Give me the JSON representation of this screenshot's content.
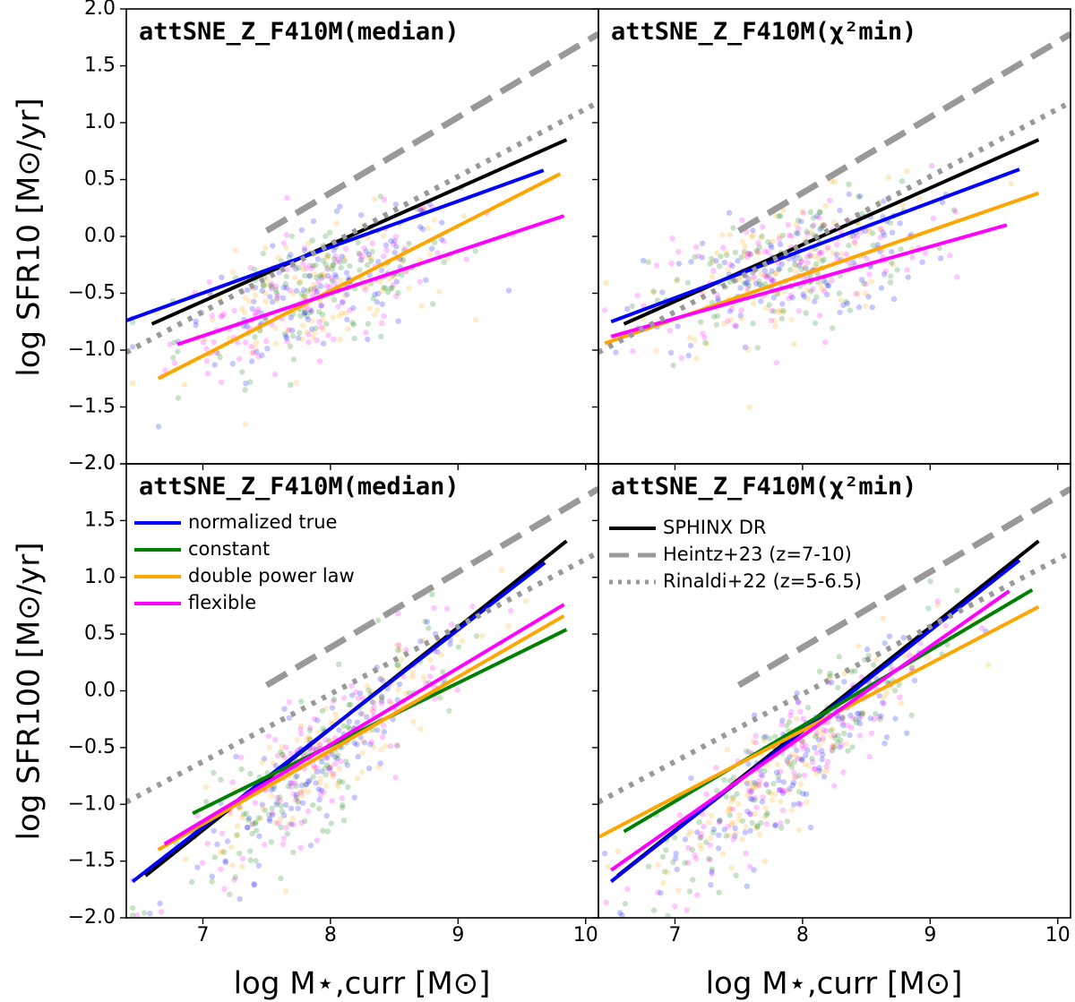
{
  "figure": {
    "ylabel_top": "log SFR10 [M⊙/yr]",
    "ylabel_bottom": "log SFR100 [M⊙/yr]",
    "xlabel": "log M⋆,curr [M⊙]"
  },
  "legends": {
    "lower_left": [
      {
        "label": "normalized true",
        "color": "#0000ff",
        "style": "solid"
      },
      {
        "label": "constant",
        "color": "#008000",
        "style": "solid"
      },
      {
        "label": "double power law",
        "color": "#ffa500",
        "style": "solid"
      },
      {
        "label": "flexible",
        "color": "#ff00ff",
        "style": "solid"
      }
    ],
    "lower_right": [
      {
        "label": "SPHINX DR",
        "color": "#000000",
        "style": "solid"
      },
      {
        "label": "Heintz+23 (z=7-10)",
        "color": "#999999",
        "style": "dashed"
      },
      {
        "label": "Rinaldi+22 (z=5-6.5)",
        "color": "#999999",
        "style": "dotted"
      }
    ]
  },
  "chart_data": [
    {
      "type": "scatter",
      "panel": "top-left",
      "title": "attSNE_Z_F410M(median)",
      "xlim": [
        6.4,
        10.1
      ],
      "ylim": [
        -2.0,
        2.0
      ],
      "xticks": [
        7,
        8,
        9,
        10
      ],
      "yticks": [
        -2.0,
        -1.5,
        -1.0,
        -0.5,
        0.0,
        0.5,
        1.0,
        1.5,
        2.0
      ],
      "xlabel": "",
      "ylabel": "log SFR10 [M⊙/yr]",
      "scatter_center": [
        -0.45,
        0.38,
        0.0
      ],
      "series": [
        {
          "name": "SPHINX DR",
          "color": "#000000",
          "style": "solid",
          "x": [
            6.6,
            9.85
          ],
          "y": [
            -0.77,
            0.85
          ]
        },
        {
          "name": "normalized true",
          "color": "#0000ff",
          "style": "solid",
          "x": [
            6.4,
            9.67
          ],
          "y": [
            -0.74,
            0.58
          ]
        },
        {
          "name": "double power law",
          "color": "#ffa500",
          "style": "solid",
          "x": [
            6.65,
            9.8
          ],
          "y": [
            -1.25,
            0.55
          ]
        },
        {
          "name": "flexible",
          "color": "#ff00ff",
          "style": "solid",
          "x": [
            6.8,
            9.83
          ],
          "y": [
            -0.95,
            0.18
          ]
        },
        {
          "name": "Heintz+23 (z=7-10)",
          "color": "#999999",
          "style": "dashed",
          "x": [
            7.5,
            10.1
          ],
          "y": [
            0.05,
            1.78
          ]
        },
        {
          "name": "Rinaldi+22 (z=5-6.5)",
          "color": "#999999",
          "style": "dotted",
          "x": [
            6.4,
            10.1
          ],
          "y": [
            -1.02,
            1.18
          ]
        }
      ]
    },
    {
      "type": "scatter",
      "panel": "top-right",
      "title": "attSNE_Z_F410M(χ²min)",
      "xlim": [
        6.4,
        10.1
      ],
      "ylim": [
        -2.0,
        2.0
      ],
      "xticks": [
        7,
        8,
        9,
        10
      ],
      "yticks": [
        -2.0,
        -1.5,
        -1.0,
        -0.5,
        0.0,
        0.5,
        1.0,
        1.5,
        2.0
      ],
      "xlabel": "",
      "ylabel": "",
      "scatter_center": [
        -0.25,
        0.3,
        0.0
      ],
      "series": [
        {
          "name": "SPHINX DR",
          "color": "#000000",
          "style": "solid",
          "x": [
            6.6,
            9.85
          ],
          "y": [
            -0.77,
            0.85
          ]
        },
        {
          "name": "normalized true",
          "color": "#0000ff",
          "style": "solid",
          "x": [
            6.5,
            9.7
          ],
          "y": [
            -0.75,
            0.59
          ]
        },
        {
          "name": "double power law",
          "color": "#ffa500",
          "style": "solid",
          "x": [
            6.45,
            9.85
          ],
          "y": [
            -0.94,
            0.38
          ]
        },
        {
          "name": "flexible",
          "color": "#ff00ff",
          "style": "solid",
          "x": [
            6.5,
            9.6
          ],
          "y": [
            -0.88,
            0.1
          ]
        },
        {
          "name": "Heintz+23 (z=7-10)",
          "color": "#999999",
          "style": "dashed",
          "x": [
            7.5,
            10.1
          ],
          "y": [
            0.05,
            1.78
          ]
        },
        {
          "name": "Rinaldi+22 (z=5-6.5)",
          "color": "#999999",
          "style": "dotted",
          "x": [
            6.4,
            10.1
          ],
          "y": [
            -1.02,
            1.18
          ]
        }
      ]
    },
    {
      "type": "scatter",
      "panel": "bottom-left",
      "title": "attSNE_Z_F410M(median)",
      "xlim": [
        6.4,
        10.1
      ],
      "ylim": [
        -2.0,
        2.0
      ],
      "xticks": [
        7,
        8,
        9,
        10
      ],
      "yticks": [
        -2.0,
        -1.5,
        -1.0,
        -0.5,
        0.0,
        0.5,
        1.0,
        1.5,
        2.0
      ],
      "xlabel": "log M⋆,curr [M⊙]",
      "ylabel": "log SFR100 [M⊙/yr]",
      "scatter_center": [
        -0.55,
        0.95,
        0.0
      ],
      "series": [
        {
          "name": "SPHINX DR",
          "color": "#000000",
          "style": "solid",
          "x": [
            6.55,
            9.85
          ],
          "y": [
            -1.63,
            1.32
          ]
        },
        {
          "name": "normalized true",
          "color": "#0000ff",
          "style": "solid",
          "x": [
            6.45,
            9.68
          ],
          "y": [
            -1.68,
            1.13
          ]
        },
        {
          "name": "constant",
          "color": "#008000",
          "style": "solid",
          "x": [
            6.92,
            9.85
          ],
          "y": [
            -1.08,
            0.54
          ]
        },
        {
          "name": "double power law",
          "color": "#ffa500",
          "style": "solid",
          "x": [
            6.65,
            9.83
          ],
          "y": [
            -1.4,
            0.66
          ]
        },
        {
          "name": "flexible",
          "color": "#ff00ff",
          "style": "solid",
          "x": [
            6.7,
            9.83
          ],
          "y": [
            -1.35,
            0.76
          ]
        },
        {
          "name": "Heintz+23 (z=7-10)",
          "color": "#999999",
          "style": "dashed",
          "x": [
            7.5,
            10.1
          ],
          "y": [
            0.05,
            1.78
          ]
        },
        {
          "name": "Rinaldi+22 (z=5-6.5)",
          "color": "#999999",
          "style": "dotted",
          "x": [
            6.4,
            10.1
          ],
          "y": [
            -0.98,
            1.22
          ]
        }
      ]
    },
    {
      "type": "scatter",
      "panel": "bottom-right",
      "title": "attSNE_Z_F410M(χ²min)",
      "xlim": [
        6.4,
        10.1
      ],
      "ylim": [
        -2.0,
        2.0
      ],
      "xticks": [
        7,
        8,
        9,
        10
      ],
      "yticks": [
        -2.0,
        -1.5,
        -1.0,
        -0.5,
        0.0,
        0.5,
        1.0,
        1.5,
        2.0
      ],
      "xlabel": "log M⋆,curr [M⊙]",
      "ylabel": "",
      "scatter_center": [
        -0.55,
        0.95,
        0.0
      ],
      "series": [
        {
          "name": "SPHINX DR",
          "color": "#000000",
          "style": "solid",
          "x": [
            6.55,
            9.85
          ],
          "y": [
            -1.63,
            1.32
          ]
        },
        {
          "name": "normalized true",
          "color": "#0000ff",
          "style": "solid",
          "x": [
            6.5,
            9.7
          ],
          "y": [
            -1.68,
            1.15
          ]
        },
        {
          "name": "constant",
          "color": "#008000",
          "style": "solid",
          "x": [
            6.6,
            9.8
          ],
          "y": [
            -1.24,
            0.89
          ]
        },
        {
          "name": "double power law",
          "color": "#ffa500",
          "style": "solid",
          "x": [
            6.4,
            9.85
          ],
          "y": [
            -1.29,
            0.74
          ]
        },
        {
          "name": "flexible",
          "color": "#ff00ff",
          "style": "solid",
          "x": [
            6.5,
            9.62
          ],
          "y": [
            -1.58,
            0.88
          ]
        },
        {
          "name": "Heintz+23 (z=7-10)",
          "color": "#999999",
          "style": "dashed",
          "x": [
            7.5,
            10.1
          ],
          "y": [
            0.05,
            1.78
          ]
        },
        {
          "name": "Rinaldi+22 (z=5-6.5)",
          "color": "#999999",
          "style": "dotted",
          "x": [
            6.4,
            10.1
          ],
          "y": [
            -0.98,
            1.22
          ]
        }
      ]
    }
  ]
}
